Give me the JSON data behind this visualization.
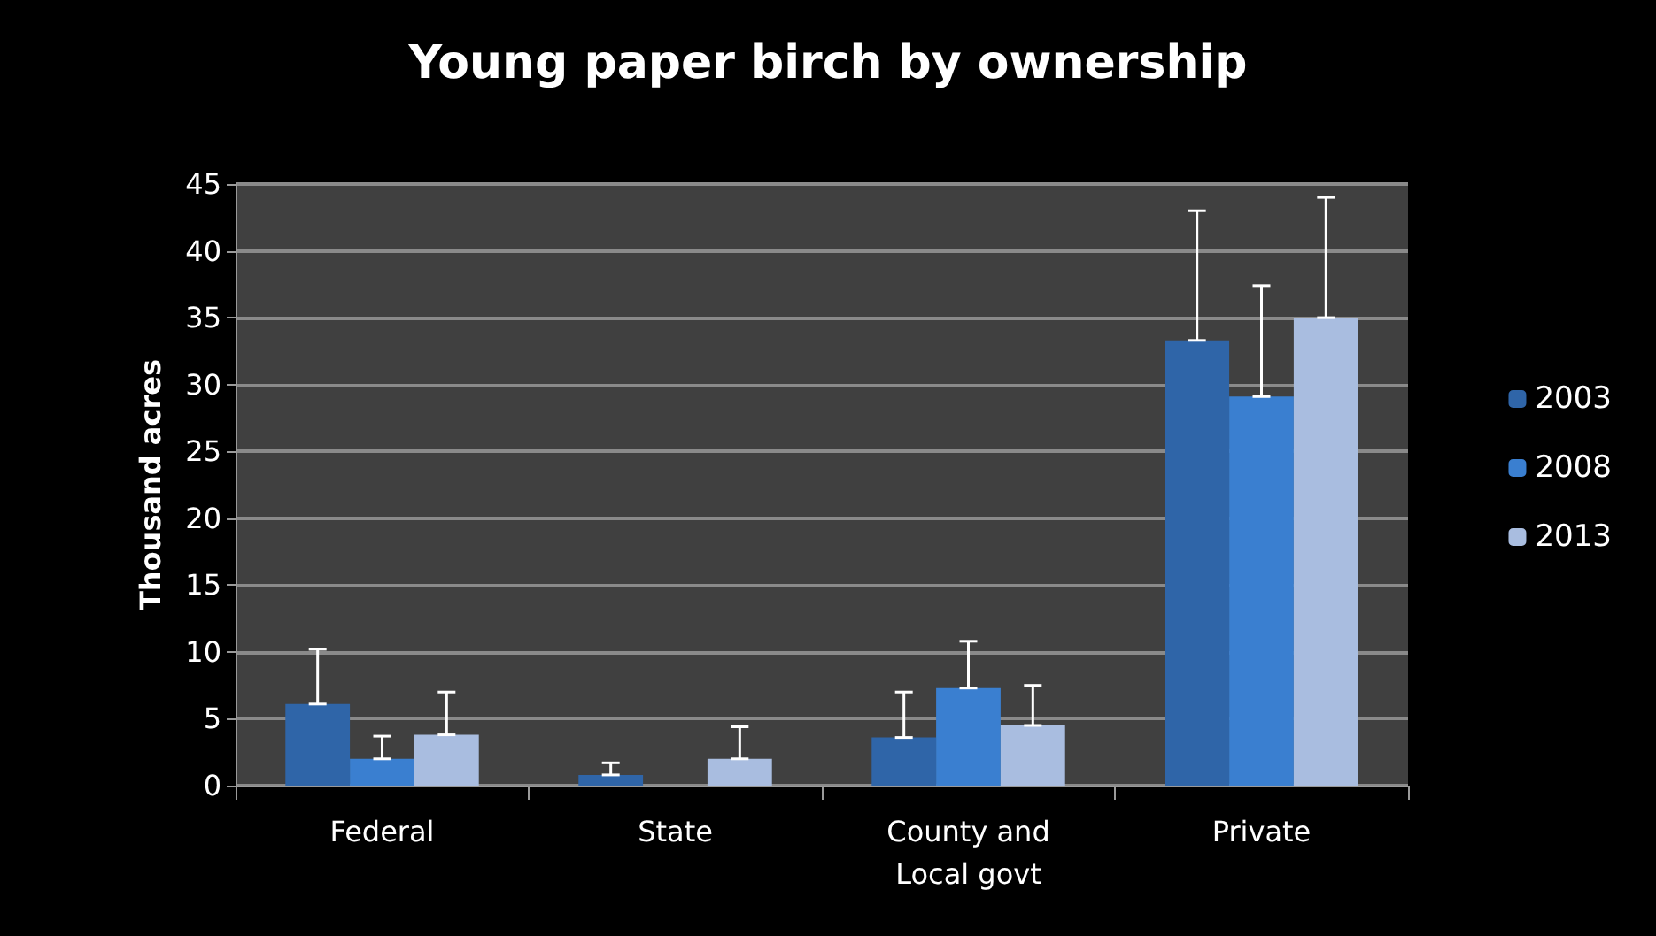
{
  "chart_data": {
    "type": "bar",
    "title": "Young paper birch by ownership",
    "ylabel": "Thousand acres",
    "categories": [
      "Federal",
      "State",
      "County and\nLocal govt",
      "Private"
    ],
    "series": [
      {
        "name": "2003",
        "color": "#2f65a8",
        "values": [
          6.1,
          0.8,
          3.6,
          33.3
        ],
        "errors": [
          [
            6.1,
            10.2
          ],
          [
            0.8,
            1.7
          ],
          [
            3.6,
            7.0
          ],
          [
            33.3,
            43.0
          ]
        ]
      },
      {
        "name": "2008",
        "color": "#3a7fd0",
        "values": [
          2.0,
          null,
          7.3,
          29.1
        ],
        "errors": [
          [
            2.0,
            3.7
          ],
          null,
          [
            7.3,
            10.8
          ],
          [
            29.1,
            37.4
          ]
        ]
      },
      {
        "name": "2013",
        "color": "#a9bde0",
        "values": [
          3.8,
          2.0,
          4.5,
          35.0
        ],
        "errors": [
          [
            3.8,
            7.0
          ],
          [
            2.0,
            4.4
          ],
          [
            4.5,
            7.5
          ],
          [
            35.0,
            44.0
          ]
        ]
      }
    ],
    "ylim": [
      0,
      45
    ],
    "yticks": [
      0,
      5,
      10,
      15,
      20,
      25,
      30,
      35,
      40,
      45
    ],
    "grid": "y",
    "legend": "right"
  }
}
